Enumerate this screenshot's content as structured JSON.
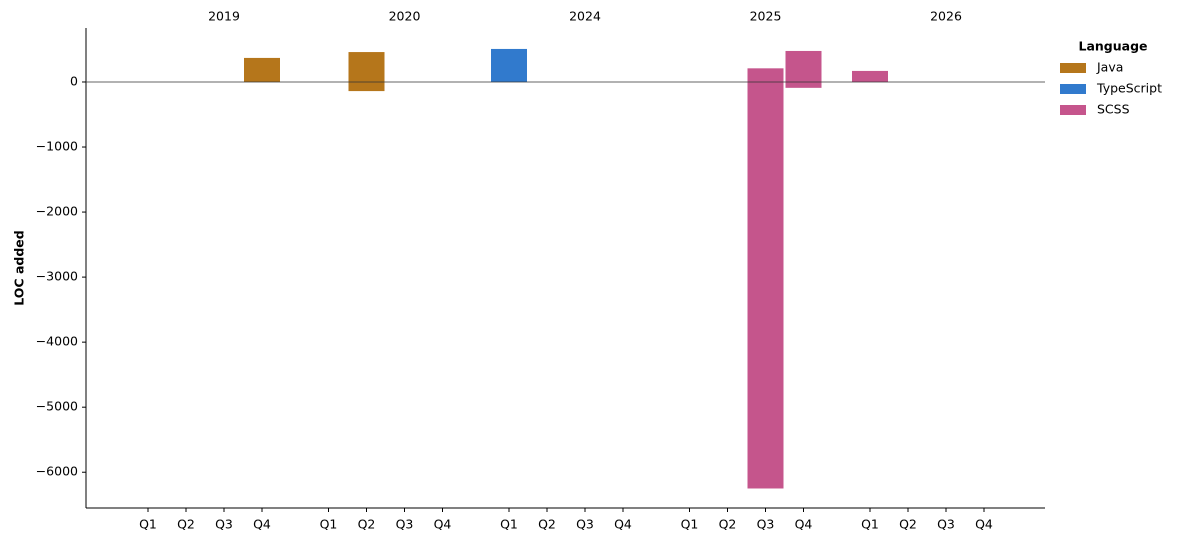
{
  "chart_data": {
    "type": "bar",
    "y_label": "LOC added",
    "groups": [
      "2019",
      "2020",
      "2024",
      "2025",
      "2026"
    ],
    "categories": [
      "Q1",
      "Q2",
      "Q3",
      "Q4",
      "Q1",
      "Q2",
      "Q3",
      "Q4",
      "Q1",
      "Q2",
      "Q3",
      "Q4",
      "Q1",
      "Q2",
      "Q3",
      "Q4",
      "Q1",
      "Q2",
      "Q3",
      "Q4"
    ],
    "legend_title": "Language",
    "legend": "upper right",
    "series": [
      {
        "name": "Java",
        "color": "#b5761b",
        "values": [
          null,
          null,
          null,
          370,
          null,
          460,
          null,
          null,
          null,
          null,
          null,
          null,
          null,
          null,
          null,
          null,
          null,
          null,
          null,
          null
        ],
        "negative_values": [
          null,
          null,
          null,
          null,
          null,
          -140,
          null,
          null,
          null,
          null,
          null,
          null,
          null,
          null,
          null,
          null,
          null,
          null,
          null,
          null
        ]
      },
      {
        "name": "TypeScript",
        "color": "#317acd",
        "values": [
          null,
          null,
          null,
          null,
          null,
          null,
          null,
          null,
          508,
          null,
          null,
          null,
          null,
          null,
          null,
          null,
          null,
          null,
          null,
          null
        ],
        "negative_values": [
          null,
          null,
          null,
          null,
          null,
          null,
          null,
          null,
          null,
          null,
          null,
          null,
          null,
          null,
          null,
          null,
          null,
          null,
          null,
          null
        ]
      },
      {
        "name": "SCSS",
        "color": "#c5558c",
        "values": [
          null,
          null,
          null,
          null,
          null,
          null,
          null,
          null,
          null,
          null,
          null,
          null,
          null,
          null,
          210,
          477,
          170,
          null,
          null,
          null
        ],
        "negative_values": [
          null,
          null,
          null,
          null,
          null,
          null,
          null,
          null,
          null,
          null,
          null,
          null,
          null,
          null,
          -6250,
          -90,
          null,
          null,
          null,
          null
        ]
      }
    ],
    "ylim": [
      -6550,
      830
    ],
    "yticks": [
      {
        "value": 0,
        "label": "0"
      },
      {
        "value": -1000,
        "label": "−1000"
      },
      {
        "value": -2000,
        "label": "−2000"
      },
      {
        "value": -3000,
        "label": "−3000"
      },
      {
        "value": -4000,
        "label": "−4000"
      },
      {
        "value": -5000,
        "label": "−5000"
      },
      {
        "value": -6000,
        "label": "−6000"
      }
    ],
    "grid": false
  }
}
